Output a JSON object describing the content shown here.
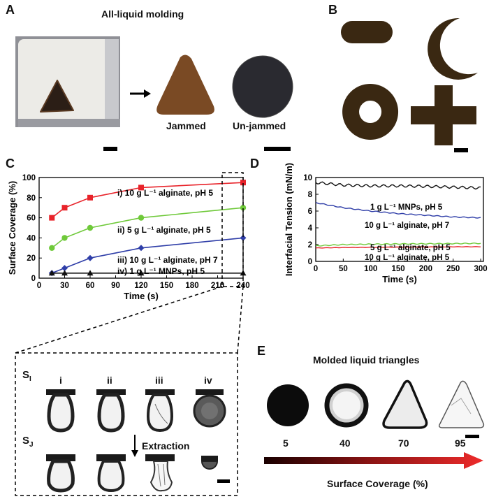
{
  "panels": {
    "a": {
      "label": "A",
      "title": "All-liquid molding",
      "jammed_label": "Jammed",
      "unjammed_label": "Un-jammed"
    },
    "b": {
      "label": "B"
    },
    "c": {
      "label": "C",
      "sub_i": "S",
      "sub_i_index": "I",
      "sub_j": "S",
      "sub_j_index": "J",
      "droplet_labels": [
        "i",
        "ii",
        "iii",
        "iv"
      ],
      "extraction_label": "Extraction"
    },
    "d": {
      "label": "D"
    },
    "e": {
      "label": "E",
      "title": "Molded liquid triangles",
      "values": [
        "5",
        "40",
        "70",
        "95"
      ],
      "axis_label": "Surface Coverage (%)"
    }
  },
  "chart_data": [
    {
      "type": "line",
      "panel": "C",
      "xlabel": "Time (s)",
      "ylabel": "Surface Coverage (%)",
      "xlim": [
        0,
        240
      ],
      "ylim": [
        0,
        100
      ],
      "xticks": [
        0,
        30,
        60,
        90,
        120,
        150,
        180,
        210,
        240
      ],
      "yticks": [
        0,
        20,
        40,
        60,
        80,
        100
      ],
      "x": [
        15,
        30,
        60,
        120,
        240
      ],
      "series": [
        {
          "name": "i) 10 g L⁻¹ alginate, pH 5",
          "color": "#e8232a",
          "marker": "square",
          "values": [
            60,
            70,
            80,
            90,
            95
          ]
        },
        {
          "name": "ii) 5 g L⁻¹ alginate, pH 5",
          "color": "#6fc93a",
          "marker": "circle",
          "values": [
            30,
            40,
            50,
            60,
            70
          ]
        },
        {
          "name": "iii) 10 g L⁻¹ alginate, pH 7",
          "color": "#2f3ea8",
          "marker": "diamond",
          "values": [
            5,
            10,
            20,
            30,
            40
          ]
        },
        {
          "name": "iv) 1 g L⁻¹ MNPs, pH 5",
          "color": "#111111",
          "marker": "triangle",
          "values": [
            5,
            5,
            5,
            5,
            5
          ]
        }
      ]
    },
    {
      "type": "line",
      "panel": "D",
      "xlabel": "Time (s)",
      "ylabel": "Interfacial Tension (mN/m)",
      "xlim": [
        0,
        305
      ],
      "ylim": [
        0,
        10
      ],
      "xticks": [
        0,
        50,
        100,
        150,
        200,
        250,
        300
      ],
      "yticks": [
        0,
        2,
        4,
        6,
        8,
        10
      ],
      "series": [
        {
          "name": "1 g L⁻¹ MNPs, pH 5",
          "color": "#111111",
          "x": [
            0,
            50,
            100,
            150,
            200,
            250,
            300
          ],
          "values": [
            9.4,
            9.1,
            9.0,
            9.0,
            8.95,
            8.85,
            8.75
          ]
        },
        {
          "name": "10 g L⁻¹ alginate, pH 7",
          "color": "#2f3ea8",
          "x": [
            0,
            50,
            100,
            150,
            200,
            250,
            300
          ],
          "values": [
            7.0,
            6.4,
            6.0,
            5.7,
            5.5,
            5.3,
            5.2
          ]
        },
        {
          "name": "5 g L⁻¹ alginate, pH 5",
          "color": "#6fc93a",
          "x": [
            0,
            50,
            100,
            150,
            200,
            250,
            300
          ],
          "values": [
            1.85,
            2.0,
            2.05,
            2.08,
            2.1,
            2.12,
            2.15
          ]
        },
        {
          "name": "10 g L⁻¹ alginate, pH 5",
          "color": "#e8232a",
          "x": [
            0,
            50,
            100,
            150,
            200,
            250,
            300
          ],
          "values": [
            1.6,
            1.65,
            1.68,
            1.7,
            1.72,
            1.74,
            1.75
          ]
        }
      ]
    }
  ]
}
